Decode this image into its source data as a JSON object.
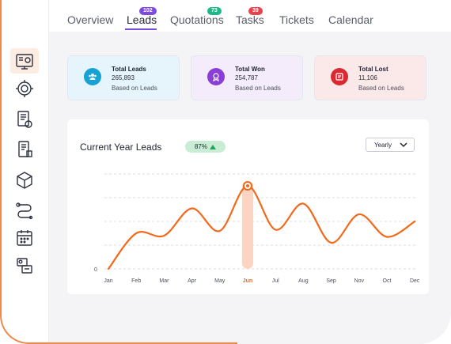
{
  "tabs": [
    {
      "label": "Overview",
      "badge": null
    },
    {
      "label": "Leads",
      "badge": "102"
    },
    {
      "label": "Quotations",
      "badge": "73"
    },
    {
      "label": "Tasks",
      "badge": "39"
    },
    {
      "label": "Tickets",
      "badge": null
    },
    {
      "label": "Calendar",
      "badge": null
    }
  ],
  "active_tab": "Leads",
  "sidebar": {
    "icons": [
      "dashboard-icon",
      "leads-target-icon",
      "documents-icon",
      "invoice-icon",
      "box-icon",
      "workflow-icon",
      "calendar-icon",
      "contacts-icon"
    ],
    "active": "dashboard-icon"
  },
  "stats": {
    "total_leads": {
      "title": "Total Leads",
      "value": "265,893",
      "sub": "Based on Leads"
    },
    "total_won": {
      "title": "Total Won",
      "value": "254,787",
      "sub": "Based on Leads"
    },
    "total_lost": {
      "title": "Total Lost",
      "value": "11,106",
      "sub": "Based on Leads"
    }
  },
  "chart": {
    "title": "Current Year Leads",
    "change": "87%",
    "period": "Yearly",
    "y_zero": "0"
  },
  "colors": {
    "accent": "#f2691a",
    "tab_underline": "#7c4ddb",
    "badge_leads": "#7c4ddb",
    "badge_quotations": "#1fb888",
    "badge_tasks": "#e6434d"
  },
  "chart_data": {
    "type": "line",
    "title": "Current Year Leads",
    "categories": [
      "Jan",
      "Feb",
      "Mar",
      "Apr",
      "May",
      "Jun",
      "Jul",
      "Aug",
      "Sep",
      "Nov",
      "Oct",
      "Dec"
    ],
    "series": [
      {
        "values": [
          0,
          30,
          28,
          51,
          32,
          70,
          33,
          55,
          22,
          46,
          27,
          40
        ]
      }
    ],
    "highlight": "Jun",
    "ylim": [
      0,
      80
    ],
    "grid": true
  }
}
